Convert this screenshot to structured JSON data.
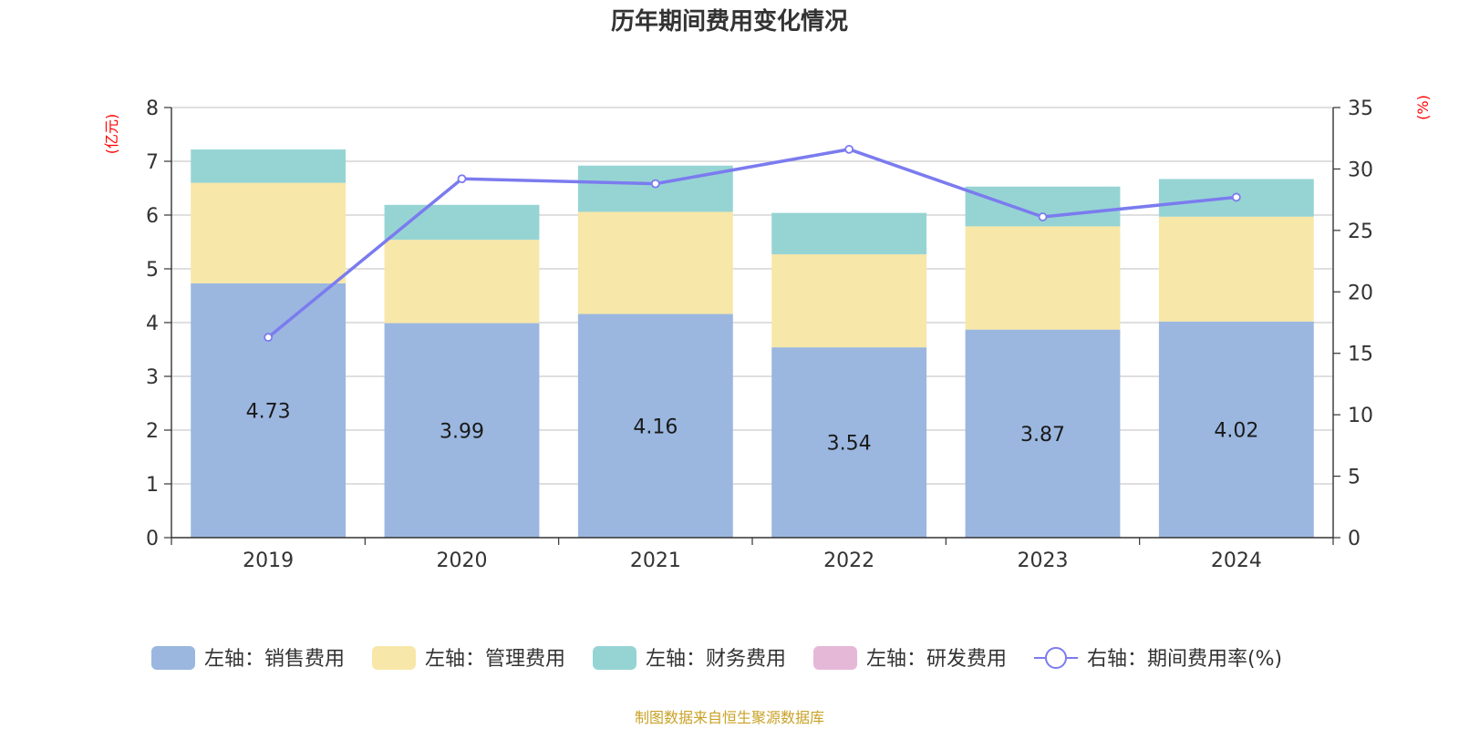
{
  "chart_data": {
    "type": "bar",
    "title": "历年期间费用变化情况",
    "categories": [
      "2019",
      "2020",
      "2021",
      "2022",
      "2023",
      "2024"
    ],
    "left_axis": {
      "unit": "(亿元)",
      "ylim": [
        0,
        8
      ],
      "ticks": [
        0,
        1,
        2,
        3,
        4,
        5,
        6,
        7,
        8
      ]
    },
    "right_axis": {
      "unit": "(%)",
      "ylim": [
        0,
        35
      ],
      "ticks": [
        0,
        5,
        10,
        15,
        20,
        25,
        30,
        35
      ]
    },
    "series": [
      {
        "name": "左轴：销售费用",
        "type": "bar",
        "axis": "left",
        "color": "#9bb7e0",
        "values": [
          4.73,
          3.99,
          4.16,
          3.54,
          3.87,
          4.02
        ],
        "show_labels": true
      },
      {
        "name": "左轴：管理费用",
        "type": "bar",
        "axis": "left",
        "color": "#f7e7a8",
        "values": [
          1.87,
          1.55,
          1.9,
          1.73,
          1.92,
          1.95
        ]
      },
      {
        "name": "左轴：财务费用",
        "type": "bar",
        "axis": "left",
        "color": "#96d4d4",
        "values": [
          0.62,
          0.65,
          0.86,
          0.77,
          0.74,
          0.7
        ]
      },
      {
        "name": "左轴：研发费用",
        "type": "bar",
        "axis": "left",
        "color": "#e6b8d8",
        "values": [
          0,
          0,
          0,
          0,
          0,
          0
        ]
      },
      {
        "name": "右轴：期间费用率(%)",
        "type": "line",
        "axis": "right",
        "color": "#7b7bef",
        "values": [
          16.3,
          29.2,
          28.8,
          31.6,
          26.1,
          27.7
        ]
      }
    ],
    "grid": true,
    "legend_position": "bottom"
  },
  "source_note": "制图数据来自恒生聚源数据库"
}
